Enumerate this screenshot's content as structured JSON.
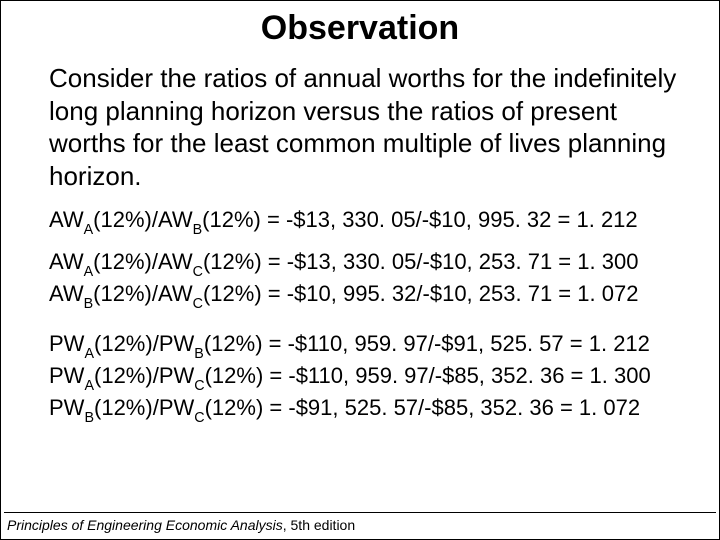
{
  "title": "Observation",
  "paragraph": "Consider the ratios of annual worths for the indefinitely long planning horizon versus the ratios of present worths for the least common multiple of lives planning horizon.",
  "equations": {
    "aw": [
      {
        "lhs_a": "A",
        "lhs_b": "B",
        "rate": "12%",
        "num": "-$13, 330. 05",
        "den": "-$10, 995. 32",
        "res": "1. 212"
      },
      {
        "lhs_a": "A",
        "lhs_b": "C",
        "rate": "12%",
        "num": "-$13, 330. 05",
        "den": "-$10, 253. 71",
        "res": "1. 300"
      },
      {
        "lhs_a": "B",
        "lhs_b": "C",
        "rate": "12%",
        "num": "-$10, 995. 32",
        "den": "-$10, 253. 71",
        "res": "1. 072"
      }
    ],
    "pw": [
      {
        "lhs_a": "A",
        "lhs_b": "B",
        "rate": "12%",
        "num": "-$110, 959. 97",
        "den": "-$91, 525. 57",
        "res": "1. 212"
      },
      {
        "lhs_a": "A",
        "lhs_b": "C",
        "rate": "12%",
        "num": "-$110, 959. 97",
        "den": "-$85, 352. 36",
        "res": "1. 300"
      },
      {
        "lhs_a": "B",
        "lhs_b": "C",
        "rate": "12%",
        "num": "-$91, 525. 57",
        "den": "-$85, 352. 36",
        "res": "1. 072"
      }
    ]
  },
  "footer": {
    "title": "Principles of Engineering Economic Analysis",
    "edition": ", 5th edition"
  },
  "style": {
    "background": "#ffffff",
    "text_color": "#000000",
    "title_fontsize": 34,
    "body_fontsize": 26,
    "eq_fontsize": 22,
    "footer_fontsize": 14
  }
}
